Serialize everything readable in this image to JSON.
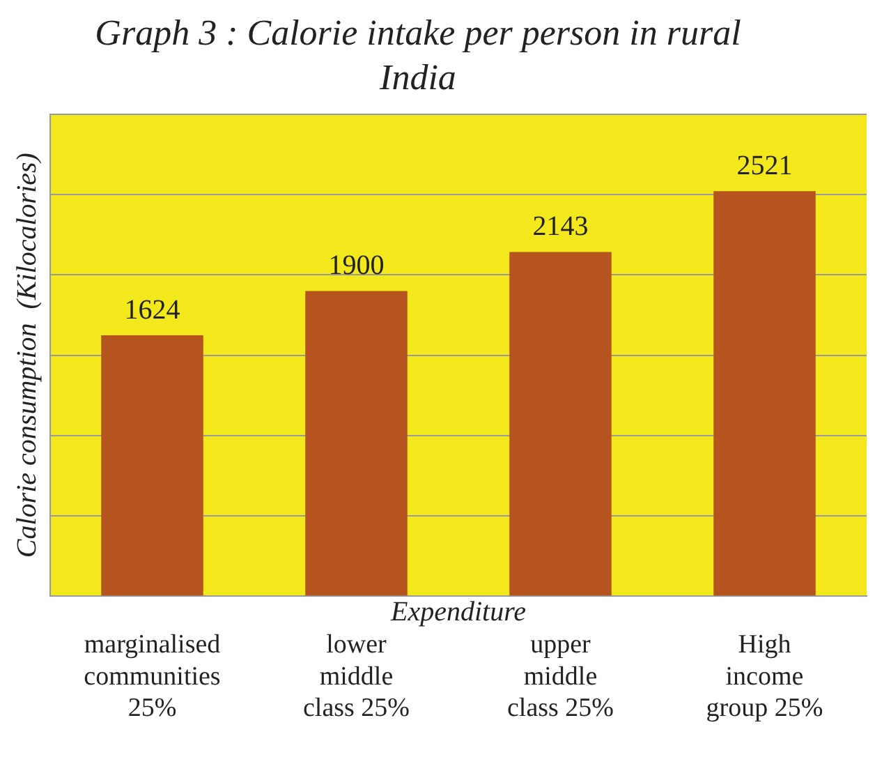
{
  "chart_data": {
    "type": "bar",
    "title": "Graph 3 : Calorie intake per person in rural India",
    "xlabel": "Expenditure",
    "ylabel": "Calorie consumption  (Kilocalories)",
    "categories": [
      "marginalised communities 25%",
      "lower middle class 25%",
      "upper middle class 25%",
      "High income group 25%"
    ],
    "values": [
      1624,
      1900,
      2143,
      2521
    ],
    "color": "#b5541f",
    "data_labels": true,
    "grid": "y",
    "tick_labels": "x",
    "ylim": [
      0,
      3000
    ],
    "yticks": [
      0,
      {
        "value": 500,
        "label": null
      },
      {
        "value": 1000,
        "label": null
      },
      {
        "value": 1500,
        "label": null
      },
      {
        "value": 2000,
        "label": null
      },
      {
        "value": 2500,
        "label": null
      },
      {
        "value": 3000,
        "label": null
      }
    ]
  }
}
